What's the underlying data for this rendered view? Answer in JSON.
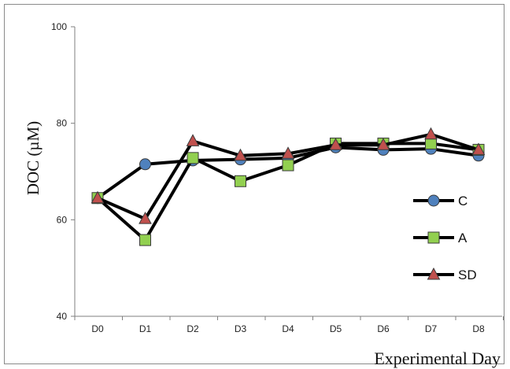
{
  "chart_data": {
    "type": "line",
    "title": "",
    "xlabel": "Experimental Day",
    "ylabel": "DOC (µM)",
    "categories": [
      "D0",
      "D1",
      "D2",
      "D3",
      "D4",
      "D5",
      "D6",
      "D7",
      "D8"
    ],
    "ylim": [
      40,
      100
    ],
    "yticks": [
      40,
      60,
      80,
      100
    ],
    "grid": false,
    "legend_position": "right",
    "series": [
      {
        "name": "C",
        "marker": "circle",
        "color": "#4f81bd",
        "values": [
          64.5,
          71.5,
          72.3,
          72.5,
          72.8,
          75.0,
          74.5,
          74.7,
          73.3
        ]
      },
      {
        "name": "A",
        "marker": "square",
        "color": "#92d050",
        "values": [
          64.5,
          55.8,
          72.8,
          68.0,
          71.3,
          75.8,
          75.8,
          75.8,
          74.5
        ]
      },
      {
        "name": "SD",
        "marker": "triangle",
        "color": "#c0504d",
        "values": [
          64.5,
          60.2,
          76.3,
          73.3,
          73.7,
          75.5,
          75.5,
          77.7,
          74.5
        ]
      }
    ]
  }
}
